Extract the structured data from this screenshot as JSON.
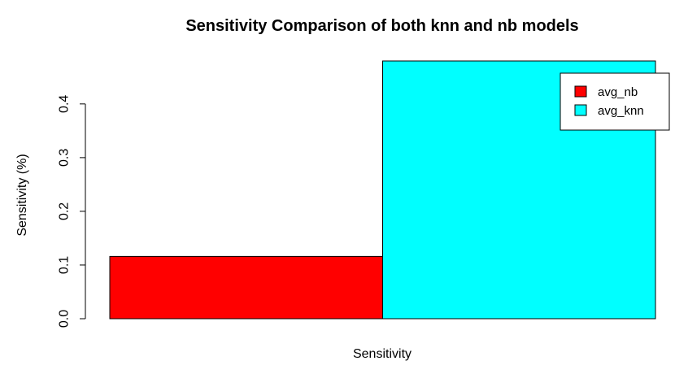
{
  "chart_data": {
    "type": "bar",
    "title": "Sensitivity Comparison of both knn and nb models",
    "xlabel": "Sensitivity",
    "ylabel": "Sensitivity (%)",
    "ylim": [
      0,
      0.48
    ],
    "yticks": [
      "0.0",
      "0.1",
      "0.2",
      "0.3",
      "0.4"
    ],
    "grid": false,
    "legend_position": "top-right",
    "categories": [
      "avg_nb",
      "avg_knn"
    ],
    "values": [
      0.116,
      0.48
    ],
    "series": [
      {
        "name": "avg_nb",
        "value": 0.116,
        "color": "#FF0000"
      },
      {
        "name": "avg_knn",
        "value": 0.48,
        "color": "#00FFFF"
      }
    ]
  }
}
